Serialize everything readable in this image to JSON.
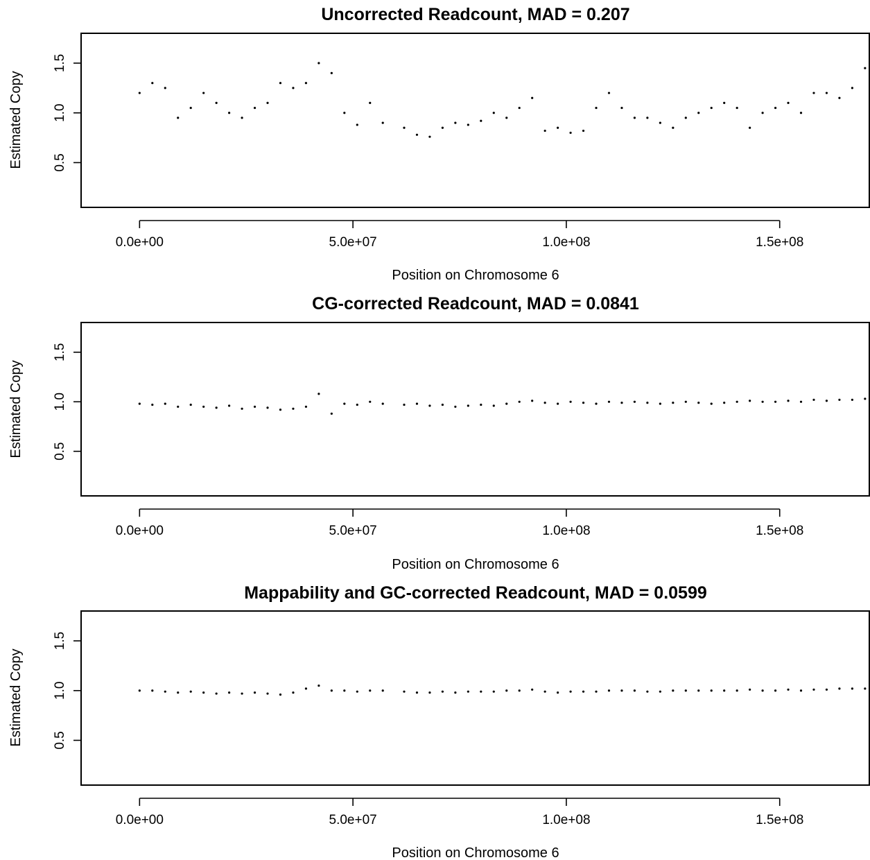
{
  "chart_data": [
    {
      "type": "scatter",
      "title": "Uncorrected Readcount, MAD =  0.207",
      "xlabel": "Position on Chromosome 6",
      "ylabel": "Estimated Copy",
      "xlim": [
        -13700000,
        171000000
      ],
      "ylim": [
        0.05,
        1.8
      ],
      "xticks": [
        0,
        50000000,
        100000000,
        150000000
      ],
      "xtick_labels": [
        "0.0e+00",
        "5.0e+07",
        "1.0e+08",
        "1.5e+08"
      ],
      "yticks": [
        0.5,
        1.0,
        1.5
      ],
      "ytick_labels": [
        "0.5",
        "1.0",
        "1.5"
      ],
      "grid": false,
      "point_color": "#000000",
      "series": [
        {
          "x": [
            0,
            3000000,
            6000000,
            9000000,
            12000000,
            15000000,
            18000000,
            21000000,
            24000000,
            27000000,
            30000000,
            33000000,
            36000000,
            39000000,
            42000000,
            45000000,
            48000000,
            51000000,
            54000000,
            57000000,
            62000000,
            65000000,
            68000000,
            71000000,
            74000000,
            77000000,
            80000000,
            83000000,
            86000000,
            89000000,
            92000000,
            95000000,
            98000000,
            101000000,
            104000000,
            107000000,
            110000000,
            113000000,
            116000000,
            119000000,
            122000000,
            125000000,
            128000000,
            131000000,
            134000000,
            137000000,
            140000000,
            143000000,
            146000000,
            149000000,
            152000000,
            155000000,
            158000000,
            161000000,
            164000000,
            167000000,
            170000000
          ],
          "y": [
            1.2,
            1.3,
            1.25,
            0.95,
            1.05,
            1.2,
            1.1,
            1.0,
            0.95,
            1.05,
            1.1,
            1.3,
            1.25,
            1.3,
            1.5,
            1.4,
            1.0,
            0.88,
            1.1,
            0.9,
            0.85,
            0.78,
            0.76,
            0.85,
            0.9,
            0.88,
            0.92,
            1.0,
            0.95,
            1.05,
            1.15,
            0.82,
            0.85,
            0.8,
            0.82,
            1.05,
            1.2,
            1.05,
            0.95,
            0.95,
            0.9,
            0.85,
            0.95,
            1.0,
            1.05,
            1.1,
            1.05,
            0.85,
            1.0,
            1.05,
            1.1,
            1.0,
            1.2,
            1.2,
            1.15,
            1.25,
            1.45
          ]
        }
      ]
    },
    {
      "type": "scatter",
      "title": "CG-corrected Readcount, MAD =  0.0841",
      "xlabel": "Position on Chromosome 6",
      "ylabel": "Estimated Copy",
      "xlim": [
        -13700000,
        171000000
      ],
      "ylim": [
        0.05,
        1.8
      ],
      "xticks": [
        0,
        50000000,
        100000000,
        150000000
      ],
      "xtick_labels": [
        "0.0e+00",
        "5.0e+07",
        "1.0e+08",
        "1.5e+08"
      ],
      "yticks": [
        0.5,
        1.0,
        1.5
      ],
      "ytick_labels": [
        "0.5",
        "1.0",
        "1.5"
      ],
      "grid": false,
      "point_color": "#000000",
      "series": [
        {
          "x": [
            0,
            3000000,
            6000000,
            9000000,
            12000000,
            15000000,
            18000000,
            21000000,
            24000000,
            27000000,
            30000000,
            33000000,
            36000000,
            39000000,
            42000000,
            45000000,
            48000000,
            51000000,
            54000000,
            57000000,
            62000000,
            65000000,
            68000000,
            71000000,
            74000000,
            77000000,
            80000000,
            83000000,
            86000000,
            89000000,
            92000000,
            95000000,
            98000000,
            101000000,
            104000000,
            107000000,
            110000000,
            113000000,
            116000000,
            119000000,
            122000000,
            125000000,
            128000000,
            131000000,
            134000000,
            137000000,
            140000000,
            143000000,
            146000000,
            149000000,
            152000000,
            155000000,
            158000000,
            161000000,
            164000000,
            167000000,
            170000000
          ],
          "y": [
            0.98,
            0.97,
            0.98,
            0.95,
            0.97,
            0.95,
            0.94,
            0.96,
            0.93,
            0.95,
            0.94,
            0.92,
            0.93,
            0.95,
            1.08,
            0.88,
            0.98,
            0.97,
            1.0,
            0.98,
            0.97,
            0.98,
            0.96,
            0.97,
            0.95,
            0.96,
            0.97,
            0.96,
            0.98,
            1.0,
            1.01,
            0.99,
            0.98,
            1.0,
            0.99,
            0.98,
            1.0,
            0.99,
            1.0,
            0.99,
            0.98,
            0.99,
            1.0,
            0.99,
            0.98,
            0.99,
            1.0,
            1.01,
            1.0,
            1.0,
            1.01,
            1.0,
            1.02,
            1.01,
            1.02,
            1.02,
            1.03
          ]
        }
      ]
    },
    {
      "type": "scatter",
      "title": "Mappability and GC-corrected Readcount, MAD =  0.0599",
      "xlabel": "Position on Chromosome 6",
      "ylabel": "Estimated Copy",
      "xlim": [
        -13700000,
        171000000
      ],
      "ylim": [
        0.05,
        1.8
      ],
      "xticks": [
        0,
        50000000,
        100000000,
        150000000
      ],
      "xtick_labels": [
        "0.0e+00",
        "5.0e+07",
        "1.0e+08",
        "1.5e+08"
      ],
      "yticks": [
        0.5,
        1.0,
        1.5
      ],
      "ytick_labels": [
        "0.5",
        "1.0",
        "1.5"
      ],
      "grid": false,
      "point_color": "#000000",
      "series": [
        {
          "x": [
            0,
            3000000,
            6000000,
            9000000,
            12000000,
            15000000,
            18000000,
            21000000,
            24000000,
            27000000,
            30000000,
            33000000,
            36000000,
            39000000,
            42000000,
            45000000,
            48000000,
            51000000,
            54000000,
            57000000,
            62000000,
            65000000,
            68000000,
            71000000,
            74000000,
            77000000,
            80000000,
            83000000,
            86000000,
            89000000,
            92000000,
            95000000,
            98000000,
            101000000,
            104000000,
            107000000,
            110000000,
            113000000,
            116000000,
            119000000,
            122000000,
            125000000,
            128000000,
            131000000,
            134000000,
            137000000,
            140000000,
            143000000,
            146000000,
            149000000,
            152000000,
            155000000,
            158000000,
            161000000,
            164000000,
            167000000,
            170000000
          ],
          "y": [
            1.0,
            1.0,
            0.99,
            0.98,
            0.99,
            0.98,
            0.97,
            0.98,
            0.97,
            0.98,
            0.97,
            0.96,
            0.98,
            1.02,
            1.05,
            1.0,
            1.0,
            0.99,
            1.0,
            1.0,
            0.99,
            0.98,
            0.98,
            0.99,
            0.98,
            0.99,
            0.99,
            0.99,
            1.0,
            1.0,
            1.01,
            0.99,
            0.98,
            0.99,
            0.99,
            0.99,
            1.0,
            1.0,
            1.0,
            0.99,
            0.99,
            1.0,
            1.0,
            1.0,
            1.0,
            1.0,
            1.0,
            1.01,
            1.0,
            1.0,
            1.01,
            1.0,
            1.01,
            1.01,
            1.02,
            1.02,
            1.02
          ]
        }
      ]
    }
  ]
}
